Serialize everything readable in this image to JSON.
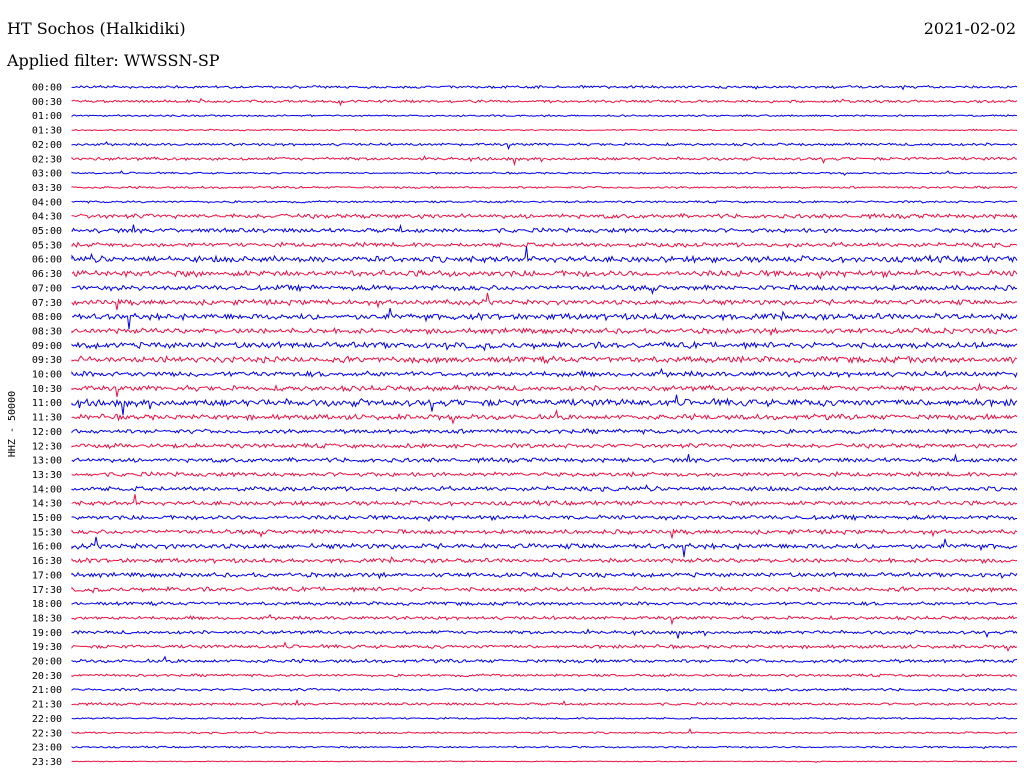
{
  "header": {
    "station": "HT Sochos (Halkidiki)",
    "date": "2021-02-02",
    "filter_text": "Applied filter: WWSSN-SP"
  },
  "colors": {
    "even_line": "#0000ee",
    "odd_line": "#ee1144"
  },
  "chart_data": {
    "type": "line",
    "channel_label": "HHZ - 50000",
    "lines": [
      {
        "label": "00:00",
        "amp": 1.5
      },
      {
        "label": "00:30",
        "amp": 1.5
      },
      {
        "label": "01:00",
        "amp": 1.0
      },
      {
        "label": "01:30",
        "amp": 0.8
      },
      {
        "label": "02:00",
        "amp": 1.5
      },
      {
        "label": "02:30",
        "amp": 1.8
      },
      {
        "label": "03:00",
        "amp": 1.0
      },
      {
        "label": "03:30",
        "amp": 1.2
      },
      {
        "label": "04:00",
        "amp": 1.2
      },
      {
        "label": "04:30",
        "amp": 2.5
      },
      {
        "label": "05:00",
        "amp": 2.5
      },
      {
        "label": "05:30",
        "amp": 2.5
      },
      {
        "label": "06:00",
        "amp": 3.5
      },
      {
        "label": "06:30",
        "amp": 3.5
      },
      {
        "label": "07:00",
        "amp": 3.0
      },
      {
        "label": "07:30",
        "amp": 3.0
      },
      {
        "label": "08:00",
        "amp": 3.5
      },
      {
        "label": "08:30",
        "amp": 3.0
      },
      {
        "label": "09:00",
        "amp": 3.5
      },
      {
        "label": "09:30",
        "amp": 3.5
      },
      {
        "label": "10:00",
        "amp": 3.0
      },
      {
        "label": "10:30",
        "amp": 3.0
      },
      {
        "label": "11:00",
        "amp": 4.0
      },
      {
        "label": "11:30",
        "amp": 3.0
      },
      {
        "label": "12:00",
        "amp": 2.5
      },
      {
        "label": "12:30",
        "amp": 2.5
      },
      {
        "label": "13:00",
        "amp": 2.5
      },
      {
        "label": "13:30",
        "amp": 2.5
      },
      {
        "label": "14:00",
        "amp": 2.5
      },
      {
        "label": "14:30",
        "amp": 2.5
      },
      {
        "label": "15:00",
        "amp": 2.5
      },
      {
        "label": "15:30",
        "amp": 2.5
      },
      {
        "label": "16:00",
        "amp": 3.0
      },
      {
        "label": "16:30",
        "amp": 2.5
      },
      {
        "label": "17:00",
        "amp": 2.5
      },
      {
        "label": "17:30",
        "amp": 2.5
      },
      {
        "label": "18:00",
        "amp": 2.0
      },
      {
        "label": "18:30",
        "amp": 2.0
      },
      {
        "label": "19:00",
        "amp": 2.0
      },
      {
        "label": "19:30",
        "amp": 2.0
      },
      {
        "label": "20:00",
        "amp": 2.0
      },
      {
        "label": "20:30",
        "amp": 1.5
      },
      {
        "label": "21:00",
        "amp": 1.5
      },
      {
        "label": "21:30",
        "amp": 1.5
      },
      {
        "label": "22:00",
        "amp": 1.0
      },
      {
        "label": "22:30",
        "amp": 1.0
      },
      {
        "label": "23:00",
        "amp": 1.0
      },
      {
        "label": "23:30",
        "amp": 0.5
      }
    ]
  }
}
